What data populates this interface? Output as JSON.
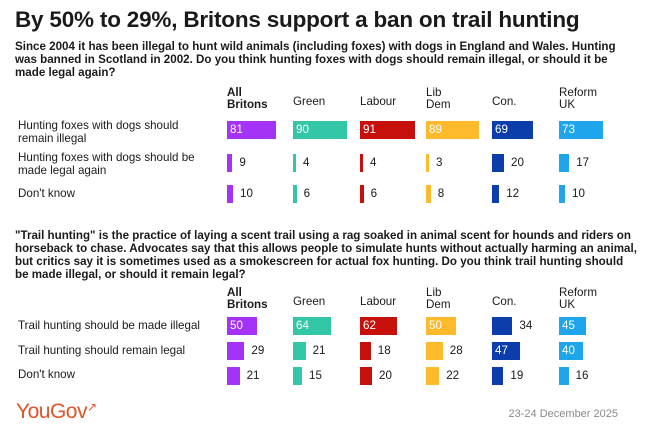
{
  "title": "By 50% to 29%, Britons support a ban on trail hunting",
  "colors": {
    "All Britons": "#a432f7",
    "Green": "#34c7a7",
    "Labour": "#c7100b",
    "Lib Dem": "#fdbb2c",
    "Con.": "#0b3eab",
    "Reform UK": "#1fa5ec"
  },
  "columns": [
    "All Britons",
    "Green",
    "Labour",
    "Lib Dem",
    "Con.",
    "Reform UK"
  ],
  "chart_data": [
    {
      "type": "bar",
      "title": "Since 2004 it has been illegal to hunt wild animals (including foxes) with dogs in England and Wales. Hunting was banned in Scotland in 2002. Do you think hunting foxes with dogs should remain illegal, or should it be made legal again?",
      "categories": [
        "All Britons",
        "Green",
        "Labour",
        "Lib Dem",
        "Con.",
        "Reform UK"
      ],
      "unit": "%",
      "ylim": [
        0,
        100
      ],
      "series": [
        {
          "name": "Hunting foxes with dogs should remain illegal",
          "values": [
            81,
            90,
            91,
            89,
            69,
            73
          ]
        },
        {
          "name": "Hunting foxes with dogs should be made legal again",
          "values": [
            9,
            4,
            4,
            3,
            20,
            17
          ]
        },
        {
          "name": "Don't know",
          "values": [
            10,
            6,
            6,
            8,
            12,
            10
          ]
        }
      ]
    },
    {
      "type": "bar",
      "title": "\"Trail hunting\" is the practice of laying a scent trail using a rag soaked in animal scent for hounds and riders on horseback to chase. Advocates say that this allows people to simulate hunts without actually harming an animal, but critics say it is sometimes used as a smokescreen for actual fox hunting. Do you think trail hunting should be made illegal, or should it remain legal?",
      "categories": [
        "All Britons",
        "Green",
        "Labour",
        "Lib Dem",
        "Con.",
        "Reform UK"
      ],
      "unit": "%",
      "ylim": [
        0,
        100
      ],
      "series": [
        {
          "name": "Trail hunting should be made illegal",
          "values": [
            50,
            64,
            62,
            50,
            34,
            45
          ]
        },
        {
          "name": "Trail hunting should remain legal",
          "values": [
            29,
            21,
            18,
            28,
            47,
            40
          ]
        },
        {
          "name": "Don't know",
          "values": [
            21,
            15,
            20,
            22,
            19,
            16
          ]
        }
      ]
    }
  ],
  "footer": {
    "logo": "YouGov",
    "date": "23-24 December 2025"
  }
}
